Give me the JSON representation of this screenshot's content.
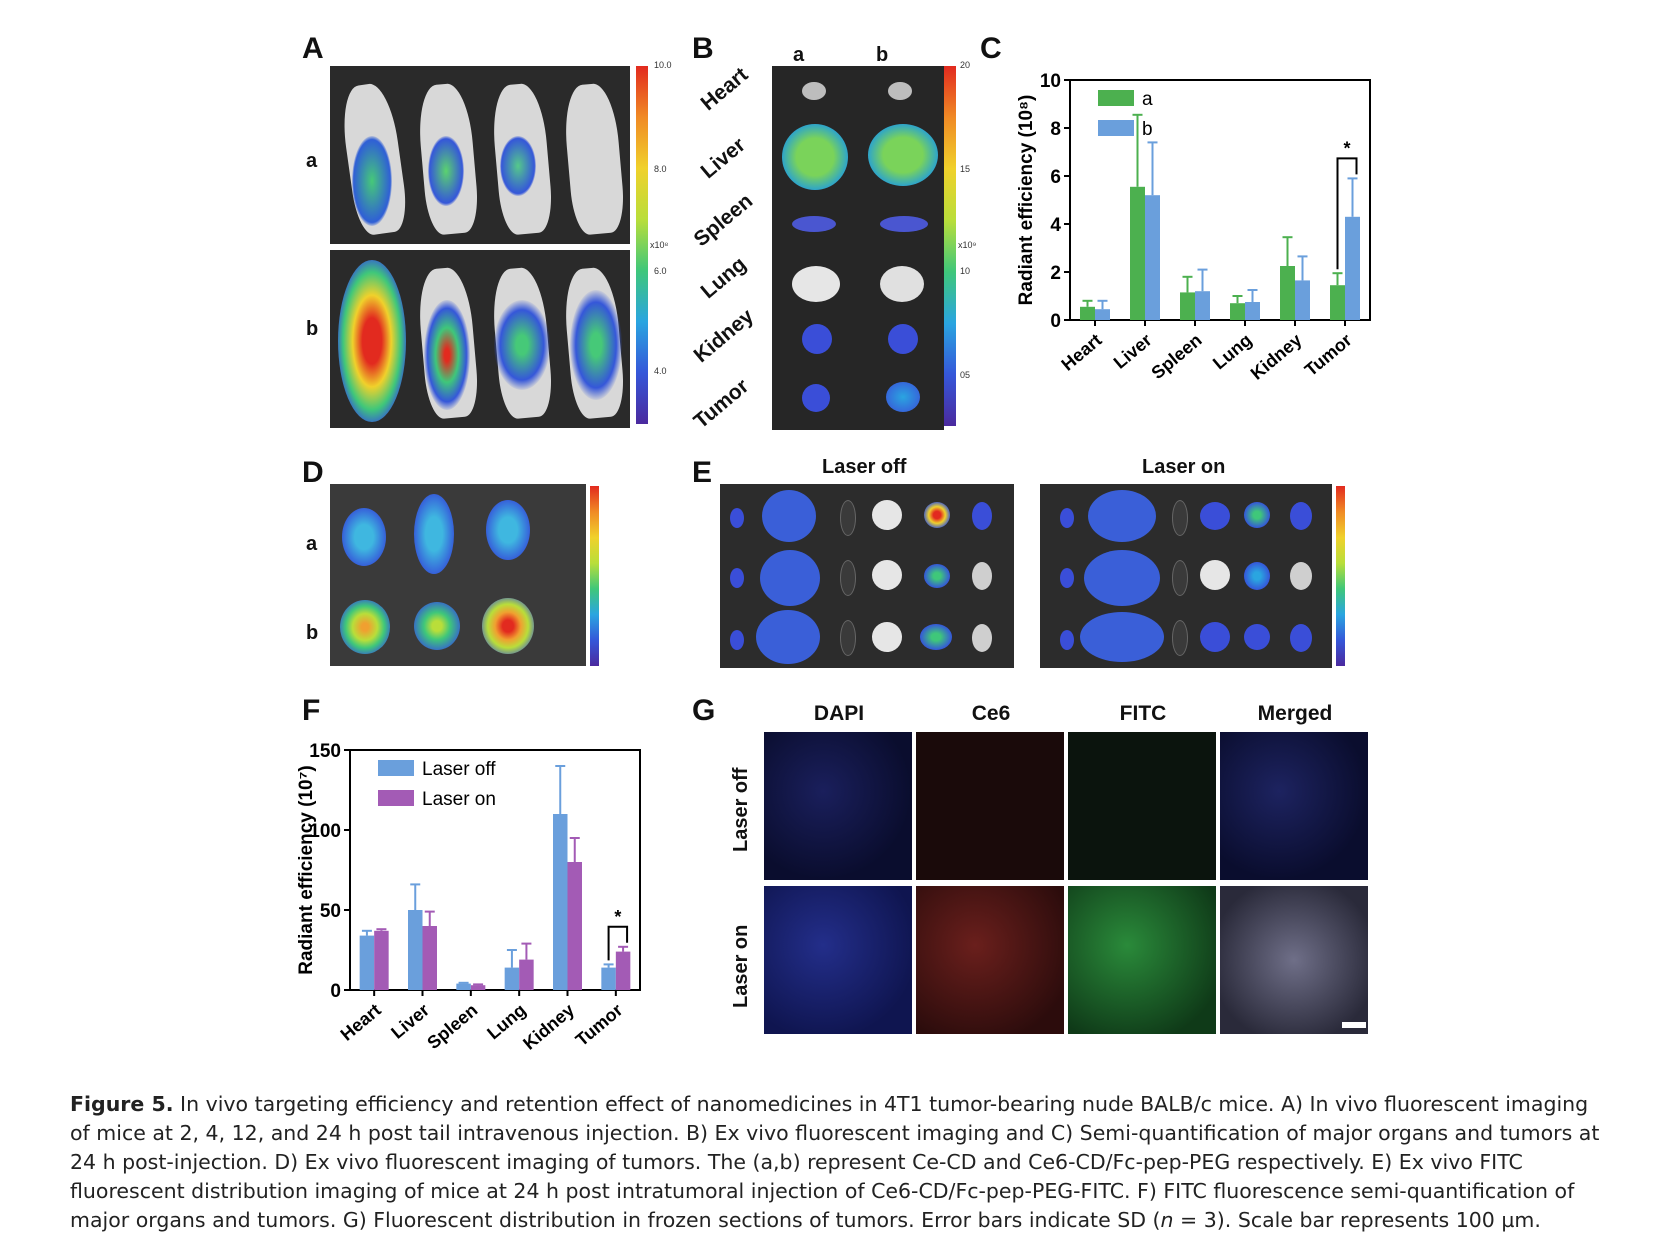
{
  "panels": {
    "A": {
      "label": "A",
      "rows": [
        "a",
        "b"
      ],
      "cbar_ticks": [
        "10.0",
        "8.0",
        "6.0",
        "4.0"
      ],
      "cbar_unit": "x10⁸"
    },
    "B": {
      "label": "B",
      "cols": [
        "a",
        "b"
      ],
      "organs": [
        "Heart",
        "Liver",
        "Spleen",
        "Lung",
        "Kidney",
        "Tumor"
      ],
      "cbar_ticks": [
        "20",
        "15",
        "10",
        "05"
      ],
      "cbar_unit": "x10⁹"
    },
    "C": {
      "label": "C"
    },
    "D": {
      "label": "D",
      "rows": [
        "a",
        "b"
      ]
    },
    "E": {
      "label": "E",
      "titles": [
        "Laser off",
        "Laser on"
      ]
    },
    "F": {
      "label": "F"
    },
    "G": {
      "label": "G",
      "cols": [
        "DAPI",
        "Ce6",
        "FITC",
        "Merged"
      ],
      "rows": [
        "Laser off",
        "Laser on"
      ]
    }
  },
  "chart_data": [
    {
      "type": "bar",
      "panel": "C",
      "categories": [
        "Heart",
        "Liver",
        "Spleen",
        "Lung",
        "Kidney",
        "Tumor"
      ],
      "series": [
        {
          "name": "a",
          "values": [
            0.55,
            5.55,
            1.15,
            0.7,
            2.25,
            1.45
          ],
          "errors": [
            0.25,
            3.0,
            0.65,
            0.3,
            1.2,
            0.5
          ],
          "color": "#4cb04f"
        },
        {
          "name": "b",
          "values": [
            0.45,
            5.2,
            1.2,
            0.75,
            1.65,
            4.3
          ],
          "errors": [
            0.35,
            2.2,
            0.9,
            0.5,
            1.0,
            1.6
          ],
          "color": "#6a9fdc"
        }
      ],
      "ylabel": "Radiant efficiency (10⁸)",
      "ylim": [
        0,
        10
      ],
      "yticks": [
        "0",
        "2",
        "4",
        "6",
        "8",
        "10"
      ],
      "significance": {
        "category": "Tumor",
        "mark": "*"
      },
      "legend": "top-left"
    },
    {
      "type": "bar",
      "panel": "F",
      "categories": [
        "Heart",
        "Liver",
        "Spleen",
        "Lung",
        "Kidney",
        "Tumor"
      ],
      "series": [
        {
          "name": "Laser off",
          "values": [
            34,
            50,
            4,
            14,
            110,
            14
          ],
          "errors": [
            3,
            16,
            0.5,
            11,
            30,
            2
          ],
          "color": "#6a9fdc"
        },
        {
          "name": "Laser on",
          "values": [
            37,
            40,
            3,
            19,
            80,
            24
          ],
          "errors": [
            1,
            9,
            0.5,
            10,
            15,
            3
          ],
          "color": "#a35bb5"
        }
      ],
      "ylabel": "Radiant efficiency (10⁷)",
      "ylim": [
        0,
        150
      ],
      "yticks": [
        "0",
        "50",
        "100",
        "150"
      ],
      "significance": {
        "category": "Tumor",
        "mark": "*"
      },
      "legend": "top-left"
    }
  ],
  "caption": {
    "figure_label": "Figure 5.",
    "text_1": " In vivo targeting efficiency and retention effect of nanomedicines in 4T1 tumor-bearing nude BALB/c mice. A) In vivo fluorescent imaging of mice at 2, 4, 12, and 24 h post tail intravenous injection. B) Ex vivo fluorescent imaging and C) Semi-quantification of major organs and tumors at 24 h post-injection. D) Ex vivo fluorescent imaging of tumors. The (a,b) represent Ce-CD and Ce6-CD/Fc-pep-PEG respectively. E) Ex vivo FITC fluorescent distribution imaging of mice at 24 h post intratumoral injection of Ce6-CD/Fc-pep-PEG-FITC. F) FITC fluorescence semi-quantification of major organs and tumors. G) Fluorescent distribution in frozen sections of tumors. Error bars indicate SD (",
    "n_var": "n",
    "text_2": " = 3). Scale bar represents 100 µm."
  }
}
